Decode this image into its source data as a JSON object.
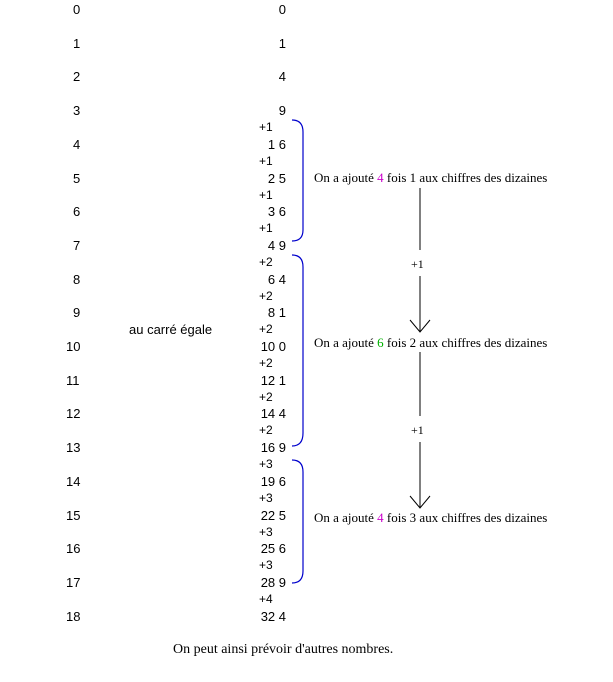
{
  "numbers": [
    "0",
    "1",
    "2",
    "3",
    "4",
    "5",
    "6",
    "7",
    "8",
    "9",
    "10",
    "11",
    "12",
    "13",
    "14",
    "15",
    "16",
    "17",
    "18"
  ],
  "squares": [
    "0",
    "1",
    "4",
    "9",
    "1 6",
    "2 5",
    "3 6",
    "4 9",
    "6 4",
    "8 1",
    "10 0",
    "12 1",
    "14 4",
    "16 9",
    "19 6",
    "22 5",
    "25 6",
    "28 9",
    "32 4"
  ],
  "increments": [
    "+1",
    "+1",
    "+1",
    "+1",
    "+2",
    "+2",
    "+2",
    "+2",
    "+2",
    "+2",
    "+3",
    "+3",
    "+3",
    "+3",
    "+4"
  ],
  "middle_label": "au carré égale",
  "notes": [
    {
      "before": "On a ajouté ",
      "highlight": "4",
      "after": " fois 1 aux chiffres des dizaines",
      "color": "#cc00cc"
    },
    {
      "before": "On a ajouté ",
      "highlight": "6",
      "after": " fois 2 aux chiffres des dizaines",
      "color": "#00b000"
    },
    {
      "before": "On a ajouté ",
      "highlight": "4",
      "after": " fois 3 aux chiffres des dizaines",
      "color": "#cc00cc"
    }
  ],
  "arrow_labels": [
    "+1",
    "+1"
  ],
  "footer": "On peut ainsi prévoir d'autres nombres.",
  "colors": {
    "brace": "#0000cc",
    "text": "#000000"
  }
}
